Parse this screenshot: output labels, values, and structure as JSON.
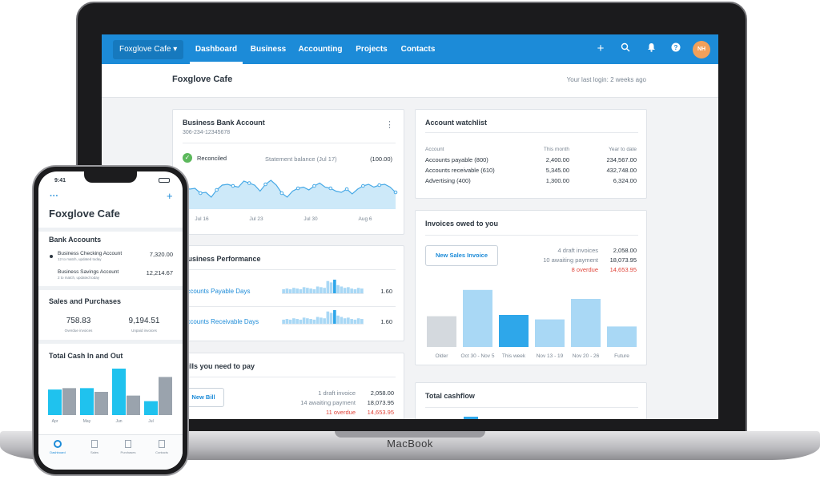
{
  "device_label": "MacBook",
  "nav": {
    "org": "Foxglove Cafe",
    "tabs": [
      "Dashboard",
      "Business",
      "Accounting",
      "Projects",
      "Contacts"
    ],
    "avatar": "NH"
  },
  "header": {
    "title": "Foxglove Cafe",
    "last_login": "Your last login: 2 weeks ago"
  },
  "bank_card": {
    "title": "Business Bank Account",
    "account_no": "306-234-12345678",
    "reconciled": "Reconciled",
    "statement_label": "Statement balance (Jul 17)",
    "statement_value": "(100.00)",
    "x_labels": [
      "Jul 16",
      "Jul 23",
      "Jul 30",
      "Aug 6"
    ],
    "line_values": [
      0.55,
      0.5,
      0.52,
      0.4,
      0.42,
      0.3,
      0.48,
      0.6,
      0.62,
      0.58,
      0.55,
      0.7,
      0.65,
      0.6,
      0.45,
      0.62,
      0.72,
      0.6,
      0.4,
      0.3,
      0.45,
      0.52,
      0.55,
      0.48,
      0.58,
      0.65,
      0.55,
      0.52,
      0.45,
      0.42,
      0.5,
      0.38,
      0.5,
      0.58,
      0.62,
      0.55,
      0.6,
      0.62,
      0.55,
      0.42
    ]
  },
  "watchlist": {
    "title": "Account watchlist",
    "headers": [
      "Account",
      "This month",
      "Year to date"
    ],
    "rows": [
      {
        "name": "Accounts payable (800)",
        "month": "2,400.00",
        "ytd": "234,567.00"
      },
      {
        "name": "Accounts receivable (610)",
        "month": "5,345.00",
        "ytd": "432,748.00"
      },
      {
        "name": "Advertising (400)",
        "month": "1,300.00",
        "ytd": "6,324.00"
      }
    ]
  },
  "performance": {
    "title": "Business Performance",
    "rows": [
      {
        "label": "Accounts Payable Days",
        "value": "1.60"
      },
      {
        "label": "Accounts Receivable Days",
        "value": "1.60"
      }
    ]
  },
  "invoices": {
    "title": "Invoices owed to you",
    "button": "New Sales Invoice",
    "stats": [
      {
        "label": "4 draft invoices",
        "value": "2,058.00",
        "overdue": false
      },
      {
        "label": "10 awaiting payment",
        "value": "18,073.95",
        "overdue": false
      },
      {
        "label": "8 overdue",
        "value": "14,653.95",
        "overdue": true
      }
    ],
    "chart": {
      "categories": [
        "Older",
        "Oct 30 - Nov 5",
        "This week",
        "Nov 13 - 19",
        "Nov 20 - 26",
        "Future"
      ],
      "values": [
        0.48,
        0.89,
        0.5,
        0.43,
        0.75,
        0.32
      ],
      "colors": [
        "#d4d9de",
        "#a9d8f5",
        "#2ea7ea",
        "#a9d8f5",
        "#a9d8f5",
        "#a9d8f5"
      ]
    }
  },
  "bills": {
    "title": "Bills you need to pay",
    "button": "New Bill",
    "stats": [
      {
        "label": "1 draft invoice",
        "value": "2,058.00",
        "overdue": false
      },
      {
        "label": "14 awaiting payment",
        "value": "18,073.95",
        "overdue": false
      },
      {
        "label": "11 overdue",
        "value": "14,653.95",
        "overdue": true
      }
    ]
  },
  "cashflow": {
    "title": "Total cashflow"
  },
  "phone": {
    "time": "9:41",
    "title": "Foxglove Cafe",
    "bank_heading": "Bank Accounts",
    "accounts": [
      {
        "name": "Business Checking Account",
        "sub": "12 to match, updated today",
        "value": "7,320.00"
      },
      {
        "name": "Business Savings Account",
        "sub": "2 to match, updated today",
        "value": "12,214.67"
      }
    ],
    "sales_heading": "Sales and Purchases",
    "sales": [
      {
        "value": "758.83",
        "label": "Overdue invoices"
      },
      {
        "value": "9,194.51",
        "label": "Unpaid invoices"
      }
    ],
    "cash_heading": "Total Cash In and Out",
    "cash_months": [
      "Apr",
      "May",
      "Jun",
      "Jul"
    ],
    "cash_in": [
      0.55,
      0.58,
      1.0,
      0.3
    ],
    "cash_out": [
      0.58,
      0.5,
      0.42,
      0.82
    ],
    "tabs": [
      "Dashboard",
      "Sales",
      "Purchases",
      "Contacts"
    ]
  }
}
